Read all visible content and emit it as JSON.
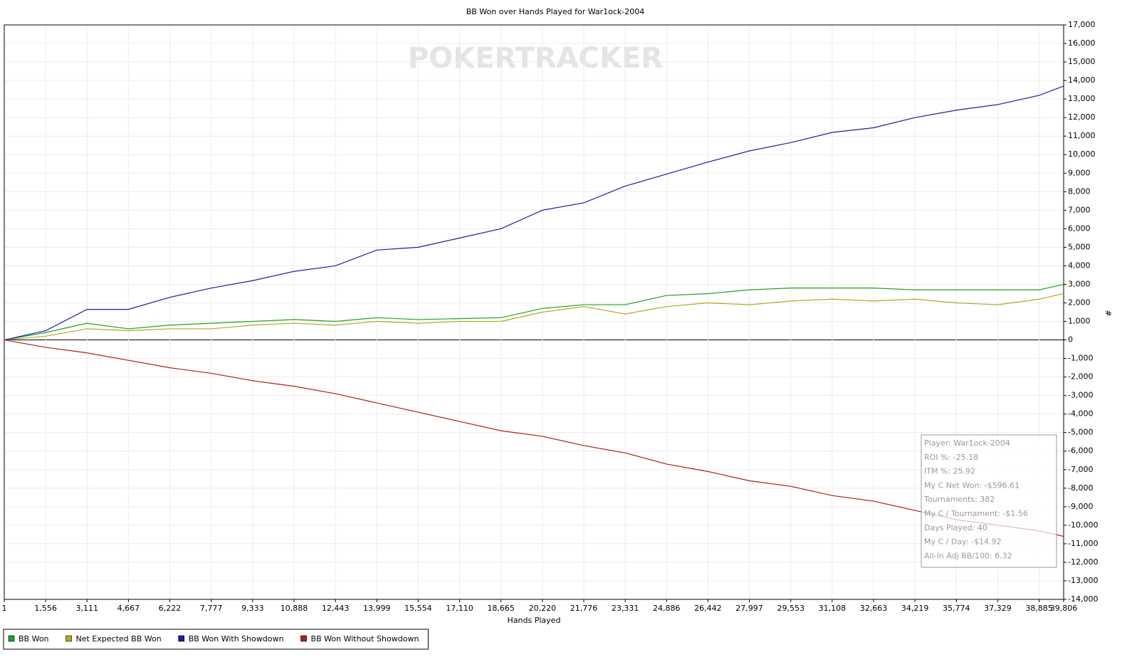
{
  "chart_data": {
    "type": "line",
    "title": "BB Won over Hands Played for War1ock-2004",
    "watermark": "POKERTRACKER",
    "x_label": "Hands Played",
    "y_label": "#",
    "xlim": [
      1,
      39806
    ],
    "ylim": [
      -14000,
      17000
    ],
    "grid": true,
    "legend": "bottom-left",
    "xticks": [
      1,
      {
        "value": 1556,
        "label": "1,556"
      },
      {
        "value": 3111,
        "label": "3,111"
      },
      {
        "value": 4667,
        "label": "4,667"
      },
      {
        "value": 6222,
        "label": "6,222"
      },
      {
        "value": 7777,
        "label": "7,777"
      },
      {
        "value": 9333,
        "label": "9,333"
      },
      {
        "value": 10888,
        "label": "10,888"
      },
      {
        "value": 12443,
        "label": "12,443"
      },
      {
        "value": 13999,
        "label": "13,999"
      },
      {
        "value": 15554,
        "label": "15,554"
      },
      {
        "value": 17110,
        "label": "17,110"
      },
      {
        "value": 18665,
        "label": "18,665"
      },
      {
        "value": 20220,
        "label": "20,220"
      },
      {
        "value": 21776,
        "label": "21,776"
      },
      {
        "value": 23331,
        "label": "23,331"
      },
      {
        "value": 24886,
        "label": "24,886"
      },
      {
        "value": 26442,
        "label": "26,442"
      },
      {
        "value": 27997,
        "label": "27,997"
      },
      {
        "value": 29553,
        "label": "29,553"
      },
      {
        "value": 31108,
        "label": "31,108"
      },
      {
        "value": 32663,
        "label": "32,663"
      },
      {
        "value": 34219,
        "label": "34,219"
      },
      {
        "value": 35774,
        "label": "35,774"
      },
      {
        "value": 37329,
        "label": "37,329"
      },
      {
        "value": 38885,
        "label": "38,885"
      },
      {
        "value": 39806,
        "label": "39,806"
      }
    ],
    "yticks": [
      {
        "value": -14000,
        "label": "-14,000"
      },
      {
        "value": -13000,
        "label": "-13,000"
      },
      {
        "value": -12000,
        "label": "-12,000"
      },
      {
        "value": -11000,
        "label": "-11,000"
      },
      {
        "value": -10000,
        "label": "-10,000"
      },
      {
        "value": -9000,
        "label": "-9,000"
      },
      {
        "value": -8000,
        "label": "-8,000"
      },
      {
        "value": -7000,
        "label": "-7,000"
      },
      {
        "value": -6000,
        "label": "-6,000"
      },
      {
        "value": -5000,
        "label": "-5,000"
      },
      {
        "value": -4000,
        "label": "-4,000"
      },
      {
        "value": -3000,
        "label": "-3,000"
      },
      {
        "value": -2000,
        "label": "-2,000"
      },
      {
        "value": -1000,
        "label": "-1,000"
      },
      0,
      {
        "value": 1000,
        "label": "1,000"
      },
      {
        "value": 2000,
        "label": "2,000"
      },
      {
        "value": 3000,
        "label": "3,000"
      },
      {
        "value": 4000,
        "label": "4,000"
      },
      {
        "value": 5000,
        "label": "5,000"
      },
      {
        "value": 6000,
        "label": "6,000"
      },
      {
        "value": 7000,
        "label": "7,000"
      },
      {
        "value": 8000,
        "label": "8,000"
      },
      {
        "value": 9000,
        "label": "9,000"
      },
      {
        "value": 10000,
        "label": "10,000"
      },
      {
        "value": 11000,
        "label": "11,000"
      },
      {
        "value": 12000,
        "label": "12,000"
      },
      {
        "value": 13000,
        "label": "13,000"
      },
      {
        "value": 14000,
        "label": "14,000"
      },
      {
        "value": 15000,
        "label": "15,000"
      },
      {
        "value": 16000,
        "label": "16,000"
      },
      {
        "value": 17000,
        "label": "17,000"
      }
    ],
    "x": [
      1,
      1556,
      3111,
      4667,
      6222,
      7777,
      9333,
      10888,
      12443,
      13999,
      15554,
      17110,
      18665,
      20220,
      21776,
      23331,
      24886,
      26442,
      27997,
      29553,
      31108,
      32663,
      34219,
      35774,
      37329,
      38885,
      39806
    ],
    "series": [
      {
        "name": "BB Won",
        "color": "#22a022",
        "values": [
          0,
          400,
          900,
          600,
          800,
          900,
          1000,
          1100,
          1000,
          1200,
          1100,
          1150,
          1200,
          1700,
          1900,
          1900,
          2400,
          2500,
          2700,
          2800,
          2800,
          2800,
          2700,
          2700,
          2700,
          2700,
          3000
        ]
      },
      {
        "name": "Net Expected BB Won",
        "color": "#b0aa20",
        "values": [
          0,
          200,
          600,
          500,
          600,
          600,
          800,
          900,
          800,
          1000,
          900,
          1000,
          1000,
          1500,
          1800,
          1400,
          1800,
          2000,
          1900,
          2100,
          2200,
          2100,
          2200,
          2000,
          1900,
          2200,
          2500
        ]
      },
      {
        "name": "BB Won With Showdown",
        "color": "#1c1ca8",
        "values": [
          0,
          500,
          1650,
          1650,
          2300,
          2800,
          3200,
          3700,
          4000,
          4850,
          5000,
          5500,
          6000,
          7000,
          7400,
          8300,
          8950,
          9600,
          10200,
          10650,
          11200,
          11450,
          12000,
          12400,
          12700,
          13200,
          13700
        ]
      },
      {
        "name": "BB Won Without Showdown",
        "color": "#b01c1c",
        "values": [
          0,
          -400,
          -700,
          -1100,
          -1500,
          -1800,
          -2200,
          -2500,
          -2900,
          -3400,
          -3900,
          -4400,
          -4900,
          -5200,
          -5700,
          -6100,
          -6700,
          -7100,
          -7600,
          -7900,
          -8400,
          -8700,
          -9200,
          -9700,
          -10000,
          -10300,
          -10600
        ]
      }
    ],
    "info_box": [
      "Player: War1ock-2004",
      "ROI %: -25.18",
      "ITM %: 25.92",
      "My C Net Won: -$596.61",
      "Tournaments: 382",
      "My C / Tournament: -$1.56",
      "Days Played: 40",
      "My C / Day: -$14.92",
      "All-In Adj BB/100: 6.32"
    ]
  }
}
